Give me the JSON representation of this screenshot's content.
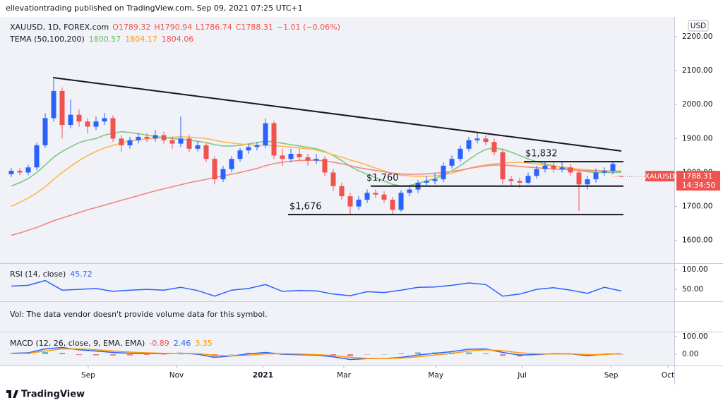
{
  "header": {
    "published": "ellevationtrading published on TradingView.com, Sep 09, 2021 07:25 UTC+1",
    "currency": "USD"
  },
  "volume_note": "Vol: The data vendor doesn't provide volume data for this symbol.",
  "footer": {
    "brand": "TradingView"
  },
  "chart_data": [
    {
      "type": "candlestick",
      "symbol": "XAUUSD, 1D, FOREX.com",
      "ohlc_labels": [
        "O1789.32",
        "H1790.94",
        "L1786.74",
        "C1788.31"
      ],
      "change_label": "−1.01 (−0.06%)",
      "indicator": "TEMA (50,100,200)",
      "price_tag_symbol": "XAUUSD",
      "countdown": "14:34:50",
      "up_color": "#2962ff",
      "down_color": "#ef5350",
      "categories": [
        null,
        null,
        null,
        null,
        null,
        null,
        null,
        null,
        null,
        null,
        null,
        null,
        null,
        null,
        null,
        null,
        null,
        null,
        null,
        null,
        null,
        null,
        null,
        null,
        null,
        null,
        null,
        null,
        null,
        null,
        null,
        null,
        null,
        null,
        null,
        null,
        null,
        null,
        null,
        null,
        null,
        null,
        null,
        null,
        null,
        null,
        null,
        null,
        null,
        null,
        null,
        null,
        null,
        null,
        null,
        null,
        null,
        null,
        null,
        null,
        null,
        null,
        null,
        null,
        null,
        null,
        null,
        null,
        null,
        null,
        null,
        null,
        null
      ],
      "open": [
        1795,
        1805,
        1800,
        1815,
        1880,
        1960,
        2040,
        1940,
        1970,
        1950,
        1935,
        1950,
        1960,
        1900,
        1880,
        1895,
        1905,
        1900,
        1910,
        1895,
        1885,
        1900,
        1870,
        1880,
        1840,
        1780,
        1810,
        1840,
        1865,
        1875,
        1880,
        1945,
        1850,
        1840,
        1855,
        1845,
        1835,
        1840,
        1800,
        1760,
        1730,
        1700,
        1720,
        1740,
        1735,
        1720,
        1690,
        1740,
        1750,
        1770,
        1775,
        1780,
        1820,
        1840,
        1870,
        1895,
        1900,
        1890,
        1860,
        1780,
        1775,
        1770,
        1790,
        1810,
        1820,
        1810,
        1815,
        1800,
        1765,
        1780,
        1800,
        1805,
        1789.32
      ],
      "high": [
        1813,
        1813,
        1823,
        1888,
        1975,
        2075,
        2050,
        2015,
        1985,
        1960,
        1965,
        1975,
        1968,
        1910,
        1905,
        1915,
        1915,
        1925,
        1920,
        1905,
        1965,
        1910,
        1892,
        1888,
        1848,
        1820,
        1848,
        1872,
        1885,
        1890,
        1959,
        1952,
        1870,
        1870,
        1870,
        1855,
        1855,
        1848,
        1810,
        1770,
        1740,
        1730,
        1750,
        1750,
        1745,
        1728,
        1748,
        1760,
        1778,
        1790,
        1798,
        1830,
        1850,
        1880,
        1905,
        1916,
        1910,
        1900,
        1870,
        1790,
        1785,
        1800,
        1820,
        1834,
        1832,
        1832,
        1825,
        1808,
        1790,
        1812,
        1815,
        1834,
        1790.94
      ],
      "low": [
        1787,
        1792,
        1792,
        1807,
        1872,
        1950,
        1900,
        1930,
        1935,
        1915,
        1925,
        1940,
        1890,
        1860,
        1870,
        1885,
        1890,
        1890,
        1885,
        1870,
        1875,
        1860,
        1862,
        1830,
        1765,
        1772,
        1800,
        1832,
        1855,
        1865,
        1872,
        1840,
        1820,
        1830,
        1835,
        1820,
        1825,
        1790,
        1745,
        1720,
        1678,
        1690,
        1710,
        1725,
        1710,
        1677,
        1684,
        1730,
        1740,
        1760,
        1765,
        1772,
        1812,
        1832,
        1862,
        1885,
        1880,
        1850,
        1765,
        1762,
        1755,
        1765,
        1782,
        1800,
        1800,
        1800,
        1790,
        1687,
        1750,
        1770,
        1790,
        1795,
        1786.74
      ],
      "close": [
        1805,
        1800,
        1815,
        1880,
        1960,
        2040,
        1940,
        1970,
        1950,
        1935,
        1950,
        1960,
        1900,
        1880,
        1895,
        1905,
        1900,
        1910,
        1895,
        1885,
        1900,
        1870,
        1880,
        1840,
        1780,
        1810,
        1840,
        1865,
        1875,
        1880,
        1945,
        1850,
        1840,
        1855,
        1845,
        1835,
        1840,
        1800,
        1760,
        1730,
        1700,
        1720,
        1740,
        1735,
        1720,
        1690,
        1740,
        1750,
        1770,
        1775,
        1780,
        1820,
        1840,
        1870,
        1895,
        1900,
        1890,
        1860,
        1780,
        1775,
        1770,
        1790,
        1810,
        1820,
        1810,
        1815,
        1800,
        1765,
        1780,
        1800,
        1805,
        1825,
        1788.31
      ],
      "lines": [
        {
          "color": "#81c784",
          "values": [
            1760,
            1770,
            1782,
            1800,
            1822,
            1845,
            1862,
            1875,
            1888,
            1895,
            1900,
            1910,
            1916,
            1920,
            1918,
            1914,
            1910,
            1906,
            1903,
            1900,
            1898,
            1895,
            1892,
            1888,
            1882,
            1878,
            1878,
            1880,
            1884,
            1888,
            1892,
            1890,
            1886,
            1882,
            1878,
            1874,
            1870,
            1862,
            1850,
            1835,
            1818,
            1805,
            1795,
            1785,
            1775,
            1765,
            1760,
            1762,
            1768,
            1775,
            1782,
            1792,
            1805,
            1820,
            1838,
            1855,
            1868,
            1872,
            1868,
            1860,
            1850,
            1840,
            1832,
            1825,
            1820,
            1815,
            1810,
            1806,
            1802,
            1800,
            1800,
            1800,
            1800.57
          ]
        },
        {
          "color": "#ffb74d",
          "values": [
            1700,
            1712,
            1725,
            1740,
            1758,
            1780,
            1800,
            1818,
            1835,
            1850,
            1862,
            1872,
            1880,
            1887,
            1893,
            1896,
            1899,
            1901,
            1903,
            1904,
            1905,
            1904,
            1903,
            1900,
            1895,
            1890,
            1887,
            1884,
            1882,
            1880,
            1880,
            1879,
            1877,
            1875,
            1872,
            1870,
            1866,
            1860,
            1852,
            1845,
            1837,
            1830,
            1822,
            1813,
            1805,
            1797,
            1792,
            1790,
            1789,
            1789,
            1790,
            1793,
            1798,
            1805,
            1812,
            1818,
            1822,
            1826,
            1828,
            1829,
            1830,
            1828,
            1825,
            1822,
            1819,
            1816,
            1813,
            1810,
            1808,
            1806,
            1805,
            1804,
            1804.17
          ]
        },
        {
          "color": "#ef8a80",
          "values": [
            1615,
            1622,
            1630,
            1638,
            1648,
            1658,
            1666,
            1674,
            1682,
            1690,
            1697,
            1704,
            1711,
            1718,
            1725,
            1732,
            1739,
            1746,
            1752,
            1758,
            1764,
            1770,
            1775,
            1780,
            1785,
            1790,
            1795,
            1800,
            1806,
            1812,
            1820,
            1826,
            1830,
            1833,
            1835,
            1836,
            1836,
            1834,
            1830,
            1826,
            1820,
            1814,
            1810,
            1806,
            1802,
            1798,
            1796,
            1795,
            1795,
            1796,
            1798,
            1800,
            1803,
            1807,
            1812,
            1816,
            1820,
            1822,
            1822,
            1820,
            1818,
            1816,
            1814,
            1812,
            1810,
            1809,
            1808,
            1806,
            1805,
            1805,
            1804,
            1804,
            1804.06
          ]
        }
      ],
      "levels": [
        {
          "value": 1832,
          "label": "$1,832"
        },
        {
          "value": 1760,
          "label": "$1,760"
        },
        {
          "value": 1676,
          "label": "$1,676"
        }
      ],
      "ylim": [
        1533,
        2258
      ],
      "yticks": [
        {
          "value": 1600,
          "label": "1600.00"
        },
        {
          "value": 1700,
          "label": "1700.00"
        },
        {
          "value": 1800,
          "label": "1800.00"
        },
        {
          "value": 1900,
          "label": "1900.00"
        },
        {
          "value": 2000,
          "label": "2000.00"
        },
        {
          "value": 2100,
          "label": "2100.00"
        },
        {
          "value": 2200,
          "label": "2200.00"
        }
      ],
      "xticks": [
        {
          "value": 9.08,
          "label": "Sep"
        },
        {
          "value": 19.5,
          "label": "Nov"
        },
        {
          "value": 29.7,
          "label": "2021"
        },
        {
          "value": 39.25,
          "label": "Mar"
        },
        {
          "value": 50.1,
          "label": "May"
        },
        {
          "value": 60.3,
          "label": "Jul"
        },
        {
          "value": 70.8,
          "label": "Sep"
        },
        {
          "value": 77.5,
          "label": "Oct"
        }
      ],
      "grid": false
    },
    {
      "type": "line",
      "title": "RSI (14, close)",
      "categories": [
        null,
        null,
        null,
        null,
        null,
        null,
        null,
        null,
        null,
        null,
        null,
        null,
        null,
        null,
        null,
        null,
        null,
        null,
        null,
        null,
        null,
        null,
        null,
        null,
        null,
        null,
        null,
        null,
        null,
        null,
        null,
        null,
        null,
        null,
        null,
        null,
        null
      ],
      "series": [
        {
          "color": "#2962ff",
          "values": [
            58,
            60,
            72,
            48,
            50,
            52,
            45,
            48,
            50,
            48,
            55,
            47,
            33,
            48,
            52,
            62,
            45,
            47,
            46,
            38,
            34,
            44,
            42,
            48,
            55,
            56,
            60,
            66,
            62,
            33,
            38,
            50,
            54,
            48,
            40,
            55,
            45.72
          ]
        }
      ],
      "ylim": [
        20,
        105
      ],
      "yticks": [
        {
          "value": 100,
          "label": "100.00"
        },
        {
          "value": 50,
          "label": "50.00"
        }
      ]
    },
    {
      "type": "line",
      "title": "MACD (12, 26, close, 9, EMA, EMA)",
      "categories": [
        null,
        null,
        null,
        null,
        null,
        null,
        null,
        null,
        null,
        null,
        null,
        null,
        null,
        null,
        null,
        null,
        null,
        null,
        null,
        null,
        null,
        null,
        null,
        null,
        null,
        null,
        null,
        null,
        null,
        null,
        null,
        null,
        null,
        null,
        null,
        null,
        null
      ],
      "series": [
        {
          "type": "bar",
          "color": "#26a69a",
          "negative_color": "#ef5350",
          "values": [
            2,
            3,
            12,
            8,
            -5,
            -7,
            -8,
            -7,
            -4,
            -2,
            1,
            -3,
            -13,
            0,
            8,
            8,
            -3,
            -4,
            -3,
            -7,
            -12,
            -1,
            0,
            4,
            10,
            10,
            10,
            10,
            5,
            -10,
            -13,
            -4,
            2,
            0,
            -6,
            2,
            -0.89
          ]
        },
        {
          "type": "line",
          "color": "#2962ff",
          "values": [
            5,
            8,
            30,
            38,
            25,
            18,
            10,
            5,
            4,
            3,
            6,
            0,
            -18,
            -10,
            2,
            10,
            0,
            -3,
            -5,
            -15,
            -30,
            -25,
            -25,
            -18,
            -5,
            5,
            15,
            28,
            30,
            10,
            -5,
            -2,
            3,
            2,
            -8,
            0,
            2.46
          ]
        },
        {
          "type": "line",
          "color": "#ff9800",
          "values": [
            3,
            5,
            18,
            30,
            30,
            25,
            18,
            12,
            8,
            5,
            5,
            3,
            -5,
            -10,
            -6,
            2,
            3,
            1,
            -2,
            -8,
            -18,
            -24,
            -25,
            -22,
            -15,
            -5,
            5,
            18,
            25,
            20,
            8,
            2,
            1,
            2,
            -2,
            -2,
            3.35
          ]
        }
      ],
      "ylim": [
        -64,
        128
      ],
      "yticks": [
        {
          "value": 100,
          "label": "100.00"
        },
        {
          "value": 0,
          "label": "0.00"
        }
      ]
    }
  ]
}
